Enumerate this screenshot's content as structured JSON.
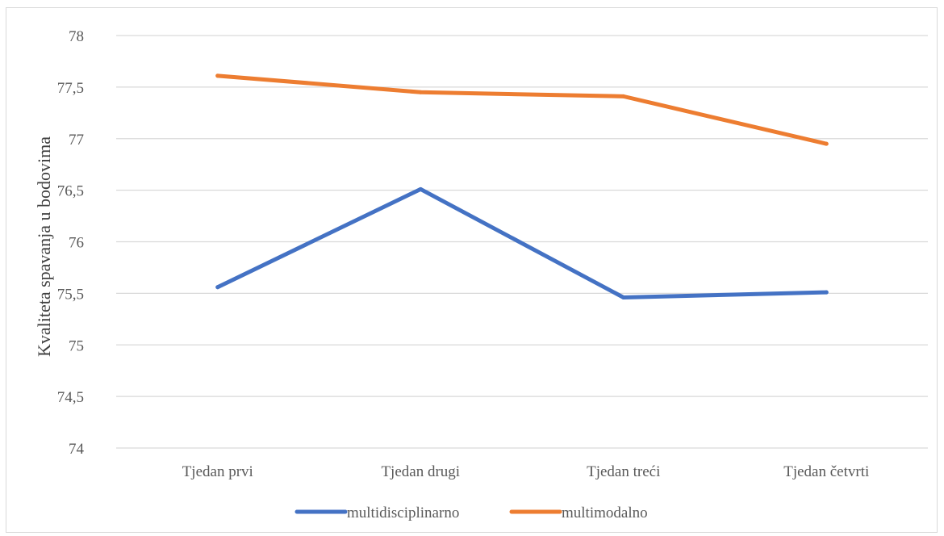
{
  "chart_data": {
    "type": "line",
    "title": "",
    "xlabel": "",
    "ylabel": "Kvaliteta spavanja u bodovima",
    "categories": [
      "Tjedan prvi",
      "Tjedan drugi",
      "Tjedan treći",
      "Tjedan četvrti"
    ],
    "ylim": [
      74,
      78
    ],
    "yticks": [
      74,
      74.5,
      75,
      75.5,
      76,
      76.5,
      77,
      77.5,
      78
    ],
    "ytick_labels": [
      "74",
      "74,5",
      "75",
      "75,5",
      "76",
      "76,5",
      "77",
      "77,5",
      "78"
    ],
    "grid": true,
    "legend_position": "bottom",
    "series": [
      {
        "name": "multidisciplinarno",
        "color": "#4472c4",
        "values": [
          75.56,
          76.51,
          75.46,
          75.51
        ]
      },
      {
        "name": "multimodalno",
        "color": "#ed7d31",
        "values": [
          77.61,
          77.45,
          77.41,
          76.95
        ]
      }
    ]
  }
}
